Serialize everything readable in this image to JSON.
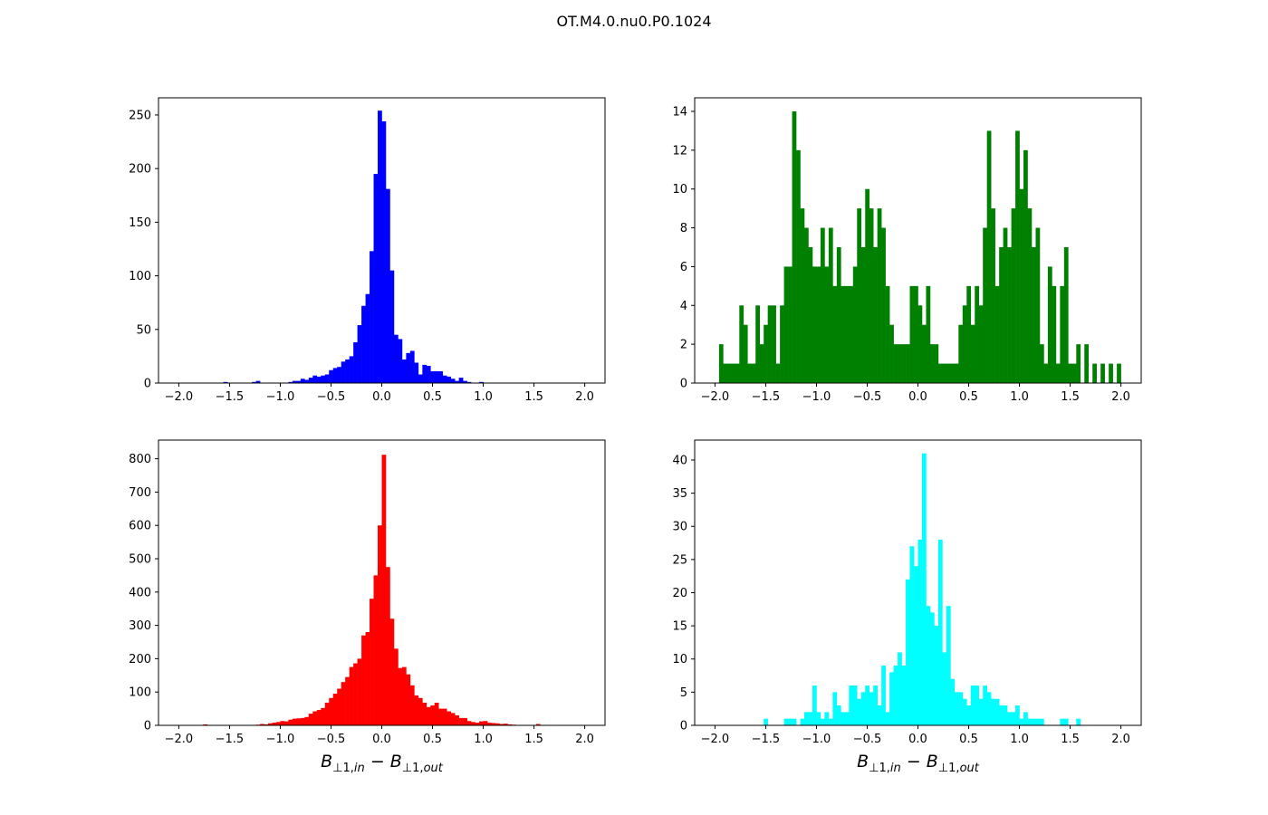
{
  "figure": {
    "suptitle": "OT.M4.0.nu0.P0.1024"
  },
  "chart_data": [
    {
      "type": "bar",
      "color": "#0000ff",
      "xlim": [
        -2.2,
        2.2
      ],
      "ylim": [
        0,
        266
      ],
      "xticks": [
        "-2.0",
        "-1.5",
        "-1.0",
        "-0.5",
        "0.0",
        "0.5",
        "1.0",
        "1.5",
        "2.0"
      ],
      "yticks": [
        "0",
        "50",
        "100",
        "150",
        "200",
        "250"
      ],
      "xlabel": "",
      "bin_width": 0.04,
      "bins": [
        [
          -1.56,
          1
        ],
        [
          -1.28,
          1
        ],
        [
          -1.24,
          2
        ],
        [
          -0.92,
          1
        ],
        [
          -0.88,
          2
        ],
        [
          -0.84,
          2
        ],
        [
          -0.8,
          4
        ],
        [
          -0.76,
          3
        ],
        [
          -0.72,
          5
        ],
        [
          -0.68,
          7
        ],
        [
          -0.64,
          6
        ],
        [
          -0.6,
          7
        ],
        [
          -0.56,
          8
        ],
        [
          -0.52,
          12
        ],
        [
          -0.48,
          14
        ],
        [
          -0.44,
          15
        ],
        [
          -0.4,
          20
        ],
        [
          -0.36,
          22
        ],
        [
          -0.32,
          25
        ],
        [
          -0.28,
          38
        ],
        [
          -0.24,
          54
        ],
        [
          -0.2,
          72
        ],
        [
          -0.16,
          83
        ],
        [
          -0.12,
          123
        ],
        [
          -0.08,
          195
        ],
        [
          -0.04,
          254
        ],
        [
          0.0,
          244
        ],
        [
          0.04,
          181
        ],
        [
          0.08,
          105
        ],
        [
          0.12,
          45
        ],
        [
          0.16,
          41
        ],
        [
          0.2,
          22
        ],
        [
          0.24,
          28
        ],
        [
          0.28,
          30
        ],
        [
          0.32,
          19
        ],
        [
          0.36,
          8
        ],
        [
          0.4,
          17
        ],
        [
          0.44,
          16
        ],
        [
          0.48,
          11
        ],
        [
          0.52,
          11
        ],
        [
          0.56,
          11
        ],
        [
          0.6,
          7
        ],
        [
          0.64,
          6
        ],
        [
          0.68,
          4
        ],
        [
          0.72,
          2
        ],
        [
          0.76,
          5
        ],
        [
          0.8,
          2
        ],
        [
          0.84,
          1
        ],
        [
          0.96,
          1
        ]
      ]
    },
    {
      "type": "bar",
      "color": "#008000",
      "xlim": [
        -2.2,
        2.2
      ],
      "ylim": [
        0,
        14.7
      ],
      "xticks": [
        "-2.0",
        "-1.5",
        "-1.0",
        "-0.5",
        "0.0",
        "0.5",
        "1.0",
        "1.5",
        "2.0"
      ],
      "yticks": [
        "0",
        "2",
        "4",
        "6",
        "8",
        "10",
        "12",
        "14"
      ],
      "xlabel": "",
      "bin_width": 0.04,
      "bins": [
        [
          -1.96,
          2
        ],
        [
          -1.92,
          1
        ],
        [
          -1.88,
          1
        ],
        [
          -1.84,
          1
        ],
        [
          -1.8,
          1
        ],
        [
          -1.76,
          4
        ],
        [
          -1.72,
          3
        ],
        [
          -1.68,
          1
        ],
        [
          -1.64,
          1
        ],
        [
          -1.6,
          4
        ],
        [
          -1.56,
          2
        ],
        [
          -1.52,
          3
        ],
        [
          -1.48,
          4
        ],
        [
          -1.44,
          4
        ],
        [
          -1.4,
          1
        ],
        [
          -1.36,
          4
        ],
        [
          -1.32,
          6
        ],
        [
          -1.28,
          6
        ],
        [
          -1.24,
          14
        ],
        [
          -1.2,
          12
        ],
        [
          -1.16,
          9
        ],
        [
          -1.12,
          8
        ],
        [
          -1.08,
          7
        ],
        [
          -1.04,
          6
        ],
        [
          -1.0,
          6
        ],
        [
          -0.96,
          8
        ],
        [
          -0.92,
          6
        ],
        [
          -0.88,
          8
        ],
        [
          -0.84,
          5
        ],
        [
          -0.8,
          7
        ],
        [
          -0.76,
          5
        ],
        [
          -0.72,
          5
        ],
        [
          -0.68,
          5
        ],
        [
          -0.64,
          6
        ],
        [
          -0.6,
          9
        ],
        [
          -0.56,
          7
        ],
        [
          -0.52,
          10
        ],
        [
          -0.48,
          9
        ],
        [
          -0.44,
          7
        ],
        [
          -0.4,
          9
        ],
        [
          -0.36,
          8
        ],
        [
          -0.32,
          5
        ],
        [
          -0.28,
          3
        ],
        [
          -0.24,
          2
        ],
        [
          -0.2,
          2
        ],
        [
          -0.16,
          2
        ],
        [
          -0.12,
          2
        ],
        [
          -0.08,
          5
        ],
        [
          -0.04,
          5
        ],
        [
          0.0,
          4
        ],
        [
          0.04,
          3
        ],
        [
          0.08,
          5
        ],
        [
          0.12,
          2
        ],
        [
          0.16,
          2
        ],
        [
          0.2,
          1
        ],
        [
          0.24,
          1
        ],
        [
          0.28,
          1
        ],
        [
          0.32,
          1
        ],
        [
          0.36,
          1
        ],
        [
          0.4,
          3
        ],
        [
          0.44,
          4
        ],
        [
          0.48,
          5
        ],
        [
          0.52,
          3
        ],
        [
          0.56,
          5
        ],
        [
          0.6,
          4
        ],
        [
          0.64,
          8
        ],
        [
          0.68,
          13
        ],
        [
          0.72,
          9
        ],
        [
          0.76,
          5
        ],
        [
          0.8,
          7
        ],
        [
          0.84,
          8
        ],
        [
          0.88,
          7
        ],
        [
          0.92,
          9
        ],
        [
          0.96,
          13
        ],
        [
          1.0,
          10
        ],
        [
          1.04,
          12
        ],
        [
          1.08,
          9
        ],
        [
          1.12,
          7
        ],
        [
          1.16,
          8
        ],
        [
          1.2,
          2
        ],
        [
          1.24,
          1
        ],
        [
          1.28,
          6
        ],
        [
          1.32,
          5
        ],
        [
          1.36,
          1
        ],
        [
          1.4,
          5
        ],
        [
          1.44,
          7
        ],
        [
          1.48,
          1
        ],
        [
          1.52,
          1
        ],
        [
          1.56,
          2
        ],
        [
          1.64,
          2
        ],
        [
          1.72,
          1
        ],
        [
          1.8,
          1
        ],
        [
          1.88,
          1
        ],
        [
          1.96,
          1
        ]
      ]
    },
    {
      "type": "bar",
      "color": "#ff0000",
      "xlim": [
        -2.2,
        2.2
      ],
      "ylim": [
        0,
        856
      ],
      "xticks": [
        "-2.0",
        "-1.5",
        "-1.0",
        "-0.5",
        "0.0",
        "0.5",
        "1.0",
        "1.5",
        "2.0"
      ],
      "yticks": [
        "0",
        "100",
        "200",
        "300",
        "400",
        "500",
        "600",
        "700",
        "800"
      ],
      "xlabel": "B⊥1,in − B⊥1,out",
      "bin_width": 0.04,
      "bins": [
        [
          -1.76,
          3
        ],
        [
          -1.24,
          2
        ],
        [
          -1.2,
          4
        ],
        [
          -1.16,
          3
        ],
        [
          -1.12,
          6
        ],
        [
          -1.08,
          8
        ],
        [
          -1.04,
          10
        ],
        [
          -1.0,
          13
        ],
        [
          -0.96,
          12
        ],
        [
          -0.92,
          17
        ],
        [
          -0.88,
          20
        ],
        [
          -0.84,
          21
        ],
        [
          -0.8,
          22
        ],
        [
          -0.76,
          25
        ],
        [
          -0.72,
          35
        ],
        [
          -0.68,
          42
        ],
        [
          -0.64,
          46
        ],
        [
          -0.6,
          52
        ],
        [
          -0.56,
          68
        ],
        [
          -0.52,
          82
        ],
        [
          -0.48,
          95
        ],
        [
          -0.44,
          110
        ],
        [
          -0.4,
          130
        ],
        [
          -0.36,
          145
        ],
        [
          -0.32,
          175
        ],
        [
          -0.28,
          186
        ],
        [
          -0.24,
          200
        ],
        [
          -0.2,
          270
        ],
        [
          -0.16,
          280
        ],
        [
          -0.12,
          380
        ],
        [
          -0.08,
          450
        ],
        [
          -0.04,
          600
        ],
        [
          0.0,
          812
        ],
        [
          0.04,
          475
        ],
        [
          0.08,
          320
        ],
        [
          0.12,
          230
        ],
        [
          0.16,
          172
        ],
        [
          0.2,
          175
        ],
        [
          0.24,
          153
        ],
        [
          0.28,
          120
        ],
        [
          0.32,
          90
        ],
        [
          0.36,
          82
        ],
        [
          0.4,
          68
        ],
        [
          0.44,
          55
        ],
        [
          0.48,
          60
        ],
        [
          0.52,
          68
        ],
        [
          0.56,
          50
        ],
        [
          0.6,
          50
        ],
        [
          0.64,
          42
        ],
        [
          0.68,
          37
        ],
        [
          0.72,
          30
        ],
        [
          0.76,
          22
        ],
        [
          0.8,
          22
        ],
        [
          0.84,
          13
        ],
        [
          0.88,
          10
        ],
        [
          0.92,
          8
        ],
        [
          0.96,
          12
        ],
        [
          1.0,
          13
        ],
        [
          1.04,
          8
        ],
        [
          1.08,
          7
        ],
        [
          1.12,
          6
        ],
        [
          1.16,
          4
        ],
        [
          1.2,
          5
        ],
        [
          1.24,
          3
        ],
        [
          1.28,
          2
        ],
        [
          1.52,
          4
        ]
      ]
    },
    {
      "type": "bar",
      "color": "#00ffff",
      "xlim": [
        -2.2,
        2.2
      ],
      "ylim": [
        0,
        43
      ],
      "xticks": [
        "-2.0",
        "-1.5",
        "-1.0",
        "-0.5",
        "0.0",
        "0.5",
        "1.0",
        "1.5",
        "2.0"
      ],
      "yticks": [
        "0",
        "5",
        "10",
        "15",
        "20",
        "25",
        "30",
        "35",
        "40"
      ],
      "xlabel": "B⊥1,in − B⊥1,out",
      "bin_width": 0.04,
      "bins": [
        [
          -1.52,
          1
        ],
        [
          -1.32,
          1
        ],
        [
          -1.28,
          1
        ],
        [
          -1.24,
          1
        ],
        [
          -1.16,
          1
        ],
        [
          -1.12,
          2
        ],
        [
          -1.08,
          2
        ],
        [
          -1.04,
          6
        ],
        [
          -1.0,
          2
        ],
        [
          -0.96,
          1
        ],
        [
          -0.92,
          2
        ],
        [
          -0.88,
          1
        ],
        [
          -0.84,
          5
        ],
        [
          -0.8,
          3
        ],
        [
          -0.76,
          2
        ],
        [
          -0.72,
          2
        ],
        [
          -0.68,
          6
        ],
        [
          -0.64,
          6
        ],
        [
          -0.6,
          4
        ],
        [
          -0.56,
          5
        ],
        [
          -0.52,
          6
        ],
        [
          -0.48,
          5
        ],
        [
          -0.44,
          6
        ],
        [
          -0.4,
          3
        ],
        [
          -0.36,
          9
        ],
        [
          -0.32,
          2
        ],
        [
          -0.28,
          8
        ],
        [
          -0.24,
          9
        ],
        [
          -0.2,
          11
        ],
        [
          -0.16,
          9
        ],
        [
          -0.12,
          22
        ],
        [
          -0.08,
          27
        ],
        [
          -0.04,
          24
        ],
        [
          0.0,
          28
        ],
        [
          0.04,
          41
        ],
        [
          0.08,
          18
        ],
        [
          0.12,
          17
        ],
        [
          0.16,
          15
        ],
        [
          0.2,
          28
        ],
        [
          0.24,
          11
        ],
        [
          0.28,
          18
        ],
        [
          0.32,
          7
        ],
        [
          0.36,
          5
        ],
        [
          0.4,
          5
        ],
        [
          0.44,
          4
        ],
        [
          0.48,
          3
        ],
        [
          0.52,
          6
        ],
        [
          0.56,
          6
        ],
        [
          0.6,
          4
        ],
        [
          0.64,
          6
        ],
        [
          0.68,
          5
        ],
        [
          0.72,
          4
        ],
        [
          0.76,
          4
        ],
        [
          0.8,
          3
        ],
        [
          0.84,
          3
        ],
        [
          0.88,
          2
        ],
        [
          0.92,
          2
        ],
        [
          0.96,
          3
        ],
        [
          1.0,
          1
        ],
        [
          1.04,
          2
        ],
        [
          1.08,
          1
        ],
        [
          1.12,
          1
        ],
        [
          1.16,
          1
        ],
        [
          1.2,
          1
        ],
        [
          1.4,
          1
        ],
        [
          1.44,
          1
        ],
        [
          1.56,
          1
        ]
      ]
    }
  ]
}
